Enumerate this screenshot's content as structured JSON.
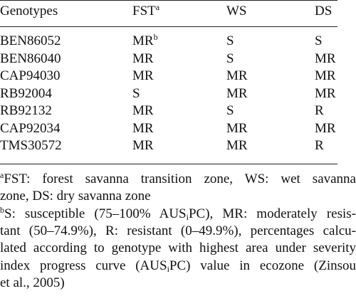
{
  "table": {
    "header": [
      {
        "text": "Genotypes"
      },
      {
        "text": "FST",
        "sup": "a"
      },
      {
        "text": "WS"
      },
      {
        "text": "DS"
      }
    ],
    "rows": [
      [
        {
          "text": "BEN86052"
        },
        {
          "text": "MR",
          "sup": "b"
        },
        {
          "text": "S"
        },
        {
          "text": "S"
        }
      ],
      [
        {
          "text": "BEN86040"
        },
        {
          "text": "MR"
        },
        {
          "text": "S"
        },
        {
          "text": "MR"
        }
      ],
      [
        {
          "text": "CAP94030"
        },
        {
          "text": "MR"
        },
        {
          "text": "MR"
        },
        {
          "text": "MR"
        }
      ],
      [
        {
          "text": "RB92004"
        },
        {
          "text": "S"
        },
        {
          "text": "MR"
        },
        {
          "text": "MR"
        }
      ],
      [
        {
          "text": "RB92132"
        },
        {
          "text": "MR"
        },
        {
          "text": "S"
        },
        {
          "text": "R"
        }
      ],
      [
        {
          "text": "CAP92034"
        },
        {
          "text": "MR"
        },
        {
          "text": "MR"
        },
        {
          "text": "MR"
        }
      ],
      [
        {
          "text": "TMS30572"
        },
        {
          "text": "MR"
        },
        {
          "text": "MR"
        },
        {
          "text": "R"
        }
      ]
    ]
  },
  "footnotes": [
    {
      "marker": "a",
      "lines": [
        [
          "FST: forest savanna transition zone, WS: wet savanna"
        ],
        [
          "zone, DS: dry savanna zone"
        ]
      ]
    },
    {
      "marker": "b",
      "lines": [
        [
          "S: susceptible (75–100% AUS",
          "i",
          "PC), MR: moderately resis-"
        ],
        [
          "tant (50–74.9%), R: resistant (0–49.9%), percentages calcu-"
        ],
        [
          "lated according to genotype with highest area under severity"
        ],
        [
          "index progress curve (AUS",
          "i",
          "PC) value in ecozone (Zinsou"
        ],
        [
          "et al., 2005)"
        ]
      ]
    }
  ]
}
